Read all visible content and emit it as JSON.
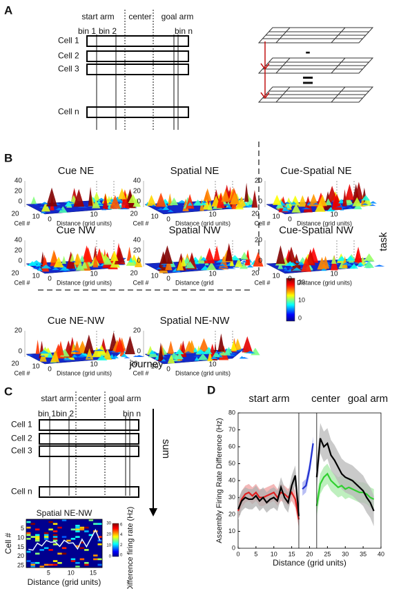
{
  "panel_a": {
    "label": "A",
    "regions": [
      "start arm",
      "center",
      "goal arm"
    ],
    "bins": [
      "bin 1",
      "bin 2",
      "bin n"
    ],
    "cells": [
      "Cell 1",
      "Cell 2",
      "Cell 3",
      "Cell n"
    ],
    "operators": [
      "-",
      "="
    ]
  },
  "panel_b": {
    "label": "B",
    "plots": [
      {
        "title": "Cue NE",
        "z_ticks": [
          40,
          20,
          0
        ],
        "cell_ticks": [
          20,
          10
        ],
        "distance_ticks": [
          0,
          10
        ],
        "cell_label": "Cell #",
        "distance_label": "Distance (grid units)"
      },
      {
        "title": "Spatial NE",
        "z_ticks": [
          40,
          20,
          0
        ],
        "cell_ticks": [
          20,
          10
        ],
        "distance_ticks": [
          0,
          10
        ],
        "cell_label": "Cell #",
        "distance_label": "Distance (grid units)"
      },
      {
        "title": "Cue-Spatial NE",
        "z_ticks": [
          20,
          0
        ],
        "cell_ticks": [
          20,
          10
        ],
        "distance_ticks": [
          0,
          10
        ],
        "cell_label": "Cell #",
        "distance_label": "Distance (grid units)"
      },
      {
        "title": "Cue NW",
        "z_ticks": [
          40,
          20,
          0
        ],
        "cell_ticks": [
          20,
          10
        ],
        "distance_ticks": [
          0,
          10
        ],
        "cell_label": "Cell #",
        "distance_label": "Distance (grid units)"
      },
      {
        "title": "Spatial NW",
        "z_ticks": [
          40,
          20,
          0
        ],
        "cell_ticks": [
          20,
          10
        ],
        "distance_ticks": [
          0,
          10
        ],
        "cell_label": "Cell #",
        "distance_label": "Distance (grid"
      },
      {
        "title": "Cue-Spatial NW",
        "z_ticks": [
          20,
          0
        ],
        "cell_ticks": [
          20,
          10
        ],
        "distance_ticks": [
          0,
          10
        ],
        "cell_label": "Cell #",
        "distance_label": "Distance (grid units)"
      },
      {
        "title": "Cue NE-NW",
        "z_ticks": [
          20,
          0
        ],
        "cell_ticks": [
          20,
          10
        ],
        "distance_ticks": [
          0,
          10
        ],
        "cell_label": "Cell #",
        "distance_label": "Distance (grid units)"
      },
      {
        "title": "Spatial NE-NW",
        "z_ticks": [
          20,
          0
        ],
        "cell_ticks": [
          20,
          10
        ],
        "distance_ticks": [
          0,
          10
        ],
        "cell_label": "Cell #",
        "distance_label": "Distance (grid units)"
      }
    ],
    "colorbar_ticks": [
      20,
      10,
      0
    ],
    "side_label": "task",
    "bottom_label": "journey"
  },
  "panel_c": {
    "label": "C",
    "regions": [
      "start arm",
      "center",
      "goal arm"
    ],
    "bins": [
      "bin 1",
      "bin 2",
      "bin n"
    ],
    "cells": [
      "Cell 1",
      "Cell 2",
      "Cell 3",
      "Cell n"
    ],
    "sum_label": "sum",
    "heatmap": {
      "title": "Spatial  NE-NW",
      "xlim": [
        0,
        17
      ],
      "ylim": [
        0,
        26
      ],
      "xticks": [
        5,
        10,
        15
      ],
      "yticks": [
        5,
        10,
        15,
        20,
        25
      ],
      "xlabel": "Distance (grid units)",
      "ylabel": "Cell #",
      "colorbar_ticks": [
        0,
        10,
        20,
        30
      ],
      "colorbar_ticks2": [
        0,
        2,
        4,
        6
      ],
      "colorbar_label": "Difference firing rate (Hz)"
    }
  },
  "panel_d": {
    "label": "D"
  },
  "chart_data": {
    "type": "line",
    "annotations": [
      "start arm",
      "center",
      "goal arm"
    ],
    "xlabel": "Distance (grid units)",
    "ylabel": "Assembly Firing Rate Difference (Hz)",
    "xlim": [
      0,
      40
    ],
    "ylim": [
      0,
      80
    ],
    "xticks": [
      0,
      5,
      10,
      15,
      20,
      25,
      30,
      35,
      40
    ],
    "yticks": [
      0,
      10,
      20,
      30,
      40,
      50,
      60,
      70,
      80
    ],
    "vlines": [
      17,
      22
    ],
    "series": [
      {
        "color": "#e02020",
        "band_color": "#f0a0a0",
        "error": 5,
        "x": [
          0,
          1,
          2,
          3,
          4,
          5,
          6,
          7,
          8,
          9,
          10,
          11,
          12,
          13,
          14,
          15,
          16,
          17
        ],
        "values": [
          22,
          29,
          32,
          33,
          31,
          33,
          30,
          30,
          31,
          32,
          33,
          30,
          33,
          32,
          30,
          33,
          29,
          17
        ]
      },
      {
        "color": "#000000",
        "band_color": "#b0b0b0",
        "error": 6,
        "x": [
          0,
          1,
          2,
          3,
          4,
          5,
          6,
          7,
          8,
          9,
          10,
          11,
          12,
          13,
          14,
          15,
          16,
          17
        ],
        "values": [
          23,
          28,
          30,
          29,
          29,
          31,
          28,
          30,
          27,
          29,
          30,
          28,
          36,
          30,
          27,
          37,
          43,
          19
        ]
      },
      {
        "color": "#2030d0",
        "band_color": "#a0a8f0",
        "error": 4,
        "x": [
          18,
          19,
          20,
          21
        ],
        "values": [
          35,
          37,
          47,
          62
        ]
      },
      {
        "color": "#30d030",
        "band_color": "#a8eaa8",
        "error": 6,
        "x": [
          22,
          23,
          24,
          25,
          26,
          27,
          28,
          29,
          30,
          31,
          32,
          33,
          34,
          35,
          36,
          37,
          38
        ],
        "values": [
          25,
          38,
          42,
          44,
          40,
          38,
          36,
          37,
          35,
          36,
          35,
          34,
          33,
          33,
          32,
          30,
          29
        ]
      },
      {
        "color": "#000000",
        "band_color": "#b8b8b8",
        "error": 9,
        "x": [
          22,
          23,
          24,
          25,
          26,
          27,
          28,
          29,
          30,
          31,
          32,
          33,
          34,
          35,
          36,
          37,
          38
        ],
        "values": [
          42,
          65,
          60,
          62,
          55,
          52,
          48,
          44,
          42,
          41,
          40,
          38,
          36,
          34,
          30,
          27,
          22
        ]
      }
    ]
  }
}
